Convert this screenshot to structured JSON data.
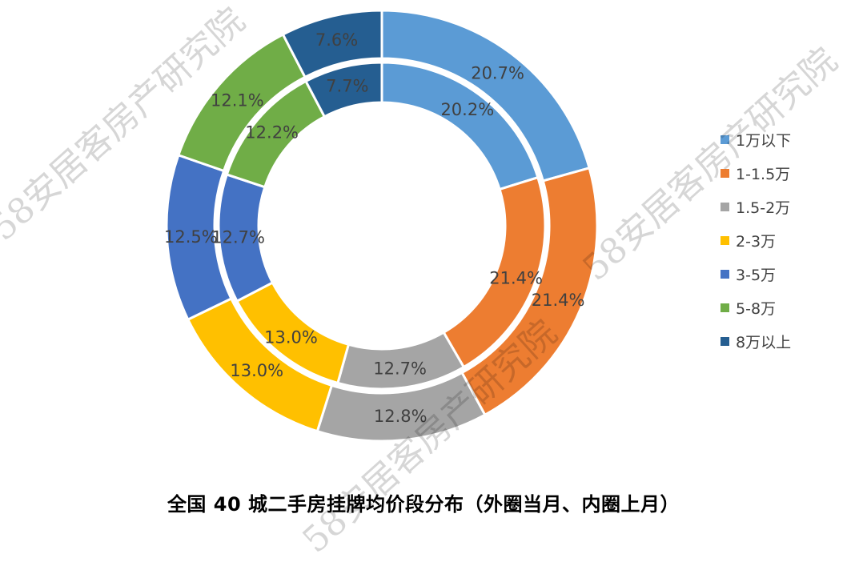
{
  "chart_data": {
    "type": "doughnut",
    "title": "全国 40 城二手房挂牌均价段分布（外圈当月、内圈上月）",
    "categories": [
      "1万以下",
      "1-1.5万",
      "1.5-2万",
      "2-3万",
      "3-5万",
      "5-8万",
      "8万以上"
    ],
    "colors": [
      "#5B9BD5",
      "#ED7D31",
      "#A5A5A5",
      "#FFC000",
      "#4472C4",
      "#70AD47",
      "#255E91"
    ],
    "series": [
      {
        "ring": "outer",
        "values": [
          20.7,
          21.4,
          12.8,
          13.0,
          12.5,
          12.1,
          7.6
        ],
        "labels": [
          "20.7%",
          "21.4%",
          "12.8%",
          "13.0%",
          "12.5%",
          "12.1%",
          "7.6%"
        ]
      },
      {
        "ring": "inner",
        "values": [
          20.2,
          21.4,
          12.7,
          13.0,
          12.7,
          12.2,
          7.7
        ],
        "labels": [
          "20.2%",
          "21.4%",
          "12.7%",
          "13.0%",
          "12.7%",
          "12.2%",
          "7.7%"
        ]
      }
    ],
    "legend_position": "right"
  },
  "watermark_text": "58安居客房产研究院"
}
